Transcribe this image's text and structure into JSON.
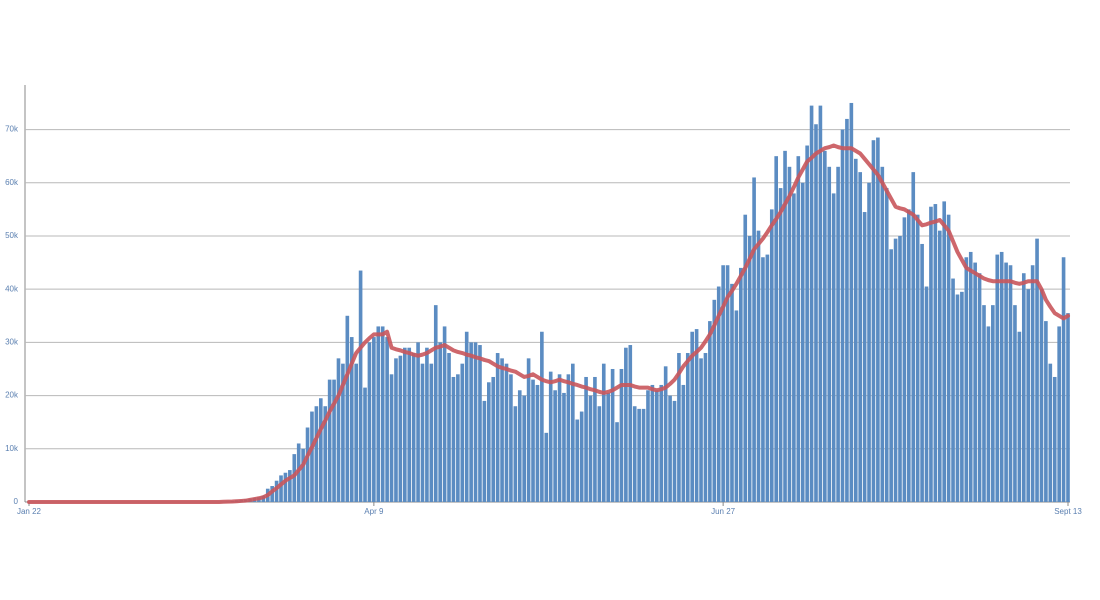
{
  "chart_data": {
    "type": "bar",
    "categories": [
      "Jan 22",
      null,
      null,
      null,
      null,
      null,
      null,
      null,
      null,
      null,
      null,
      null,
      null,
      null,
      null,
      null,
      null,
      null,
      null,
      null,
      null,
      null,
      null,
      null,
      null,
      null,
      null,
      null,
      null,
      null,
      null,
      null,
      null,
      null,
      null,
      null,
      null,
      null,
      null,
      null,
      null,
      null,
      null,
      null,
      null,
      null,
      null,
      null,
      null,
      null,
      null,
      null,
      null,
      null,
      null,
      null,
      null,
      null,
      null,
      null,
      null,
      null,
      null,
      null,
      null,
      null,
      null,
      null,
      null,
      null,
      null,
      null,
      null,
      null,
      null,
      null,
      null,
      null,
      "Apr 9",
      null,
      null,
      null,
      null,
      null,
      null,
      null,
      null,
      null,
      null,
      null,
      null,
      null,
      null,
      null,
      null,
      null,
      null,
      null,
      null,
      null,
      null,
      null,
      null,
      null,
      null,
      null,
      null,
      null,
      null,
      null,
      null,
      null,
      null,
      null,
      null,
      null,
      null,
      null,
      null,
      null,
      null,
      null,
      null,
      null,
      null,
      null,
      null,
      null,
      null,
      null,
      null,
      null,
      null,
      null,
      null,
      null,
      null,
      null,
      null,
      null,
      null,
      null,
      null,
      null,
      null,
      null,
      null,
      null,
      null,
      null,
      null,
      null,
      null,
      null,
      null,
      null,
      null,
      "Jun 27",
      null,
      null,
      null,
      null,
      null,
      null,
      null,
      null,
      null,
      null,
      null,
      null,
      null,
      null,
      null,
      null,
      null,
      null,
      null,
      null,
      null,
      null,
      null,
      null,
      null,
      null,
      null,
      null,
      null,
      null,
      null,
      null,
      null,
      null,
      null,
      null,
      null,
      null,
      null,
      null,
      null,
      null,
      null,
      null,
      null,
      null,
      null,
      null,
      null,
      null,
      null,
      null,
      null,
      null,
      null,
      null,
      null,
      null,
      null,
      null,
      null,
      null,
      null,
      null,
      null,
      null,
      null,
      null,
      null,
      null,
      null,
      null,
      null,
      null,
      null,
      null,
      null,
      "Sept 13"
    ],
    "series": [
      {
        "type": "bar",
        "color": "#5b8cc2",
        "values": [
          0,
          0,
          0,
          0,
          0,
          0,
          0,
          0,
          0,
          0,
          0,
          0,
          0,
          0,
          0,
          0,
          0,
          0,
          0,
          0,
          0,
          0,
          0,
          0,
          0,
          0,
          0,
          0,
          0,
          0,
          0,
          0,
          0,
          0,
          0,
          0,
          0,
          0,
          0,
          0,
          20,
          30,
          60,
          70,
          100,
          120,
          180,
          300,
          400,
          500,
          600,
          800,
          900,
          1200,
          2500,
          3000,
          4000,
          5000,
          5500,
          6000,
          9000,
          11000,
          10000,
          14000,
          17000,
          18000,
          19500,
          18000,
          23000,
          23000,
          27000,
          26000,
          35000,
          31000,
          26000,
          43500,
          21500,
          30000,
          31000,
          33000,
          33000,
          31000,
          24000,
          27000,
          27500,
          29000,
          29000,
          28000,
          30000,
          26000,
          29000,
          26000,
          37000,
          30000,
          33000,
          28000,
          23500,
          24000,
          26000,
          32000,
          30000,
          30000,
          29500,
          19000,
          22500,
          23500,
          28000,
          27000,
          26000,
          24000,
          18000,
          21000,
          20000,
          27000,
          23000,
          22000,
          32000,
          13000,
          24500,
          21000,
          24000,
          20500,
          24000,
          26000,
          15500,
          17000,
          23500,
          20000,
          23500,
          18000,
          26000,
          20500,
          25000,
          15000,
          25000,
          29000,
          29500,
          18000,
          17500,
          17500,
          21000,
          22000,
          21000,
          22000,
          25500,
          20000,
          19000,
          28000,
          22000,
          28000,
          32000,
          32500,
          27000,
          28000,
          34000,
          38000,
          40500,
          44500,
          44500,
          41000,
          36000,
          44000,
          54000,
          50000,
          61000,
          51000,
          46000,
          46500,
          55000,
          65000,
          59000,
          66000,
          63000,
          58000,
          65000,
          60000,
          67000,
          74500,
          71000,
          74500,
          66000,
          63000,
          58000,
          63000,
          70000,
          72000,
          75000,
          64500,
          62000,
          54500,
          60000,
          68000,
          68500,
          63000,
          59000,
          47500,
          49500,
          50000,
          53500,
          55000,
          62000,
          54000,
          48500,
          40500,
          55500,
          56000,
          51000,
          56500,
          54000,
          42000,
          39000,
          39500,
          46000,
          47000,
          45000,
          43000,
          37000,
          33000,
          37000,
          46500,
          47000,
          45000,
          44500,
          37000,
          32000,
          43000,
          40000,
          44500,
          49500,
          40000,
          34000,
          26000,
          23500,
          33000,
          46000,
          35500
        ]
      },
      {
        "type": "line",
        "color": "#c9565c",
        "values": [
          0,
          0,
          0,
          0,
          0,
          0,
          0,
          0,
          0,
          0,
          0,
          0,
          0,
          0,
          0,
          0,
          0,
          0,
          0,
          0,
          0,
          0,
          0,
          0,
          0,
          0,
          0,
          0,
          0,
          0,
          0,
          0,
          0,
          0,
          0,
          0,
          0,
          0,
          0,
          0,
          0,
          0,
          0,
          0,
          50,
          70,
          100,
          150,
          200,
          250,
          400,
          550,
          700,
          900,
          1300,
          2000,
          2600,
          3300,
          4000,
          4500,
          5000,
          6000,
          7000,
          8700,
          10300,
          12000,
          13700,
          15300,
          17000,
          18500,
          20000,
          22000,
          24000,
          26000,
          28000,
          29000,
          30000,
          30800,
          31500,
          31500,
          31500,
          32000,
          29000,
          28700,
          28500,
          28200,
          28000,
          27700,
          27500,
          27700,
          28000,
          28500,
          29000,
          29200,
          29500,
          29000,
          28500,
          28200,
          28000,
          27700,
          27500,
          27200,
          27000,
          26700,
          26500,
          26000,
          25500,
          25200,
          25000,
          24700,
          24500,
          24000,
          23500,
          23700,
          24000,
          23500,
          23000,
          22700,
          22500,
          22700,
          23000,
          22700,
          22500,
          22200,
          22000,
          21700,
          21500,
          21200,
          21000,
          20700,
          20500,
          20700,
          21000,
          21500,
          22000,
          22000,
          22000,
          21700,
          21500,
          21500,
          21500,
          21200,
          21000,
          21200,
          21500,
          22200,
          23000,
          24200,
          25500,
          26500,
          27500,
          28200,
          29000,
          30200,
          31500,
          33200,
          35000,
          36700,
          38500,
          39700,
          41000,
          42500,
          44000,
          45700,
          47500,
          48500,
          49500,
          50700,
          52000,
          53200,
          54500,
          56000,
          57500,
          59200,
          61000,
          62500,
          64000,
          64700,
          65500,
          66000,
          66500,
          66700,
          67000,
          66700,
          66500,
          66500,
          66500,
          66000,
          65500,
          64500,
          63500,
          62500,
          61500,
          60000,
          58500,
          57000,
          55500,
          55200,
          55000,
          54500,
          54000,
          53000,
          52000,
          52200,
          52500,
          52700,
          53000,
          52000,
          51000,
          49000,
          47000,
          45500,
          44000,
          43500,
          43000,
          42500,
          42000,
          41700,
          41500,
          41500,
          41500,
          41500,
          41500,
          41200,
          41000,
          41200,
          41500,
          41500,
          41500,
          40000,
          38000,
          36700,
          35500,
          35000,
          34500,
          35000
        ]
      }
    ],
    "ylim": [
      0,
      78000
    ],
    "yticks": [
      0,
      {
        "value": 10000,
        "label": "10k"
      },
      {
        "value": 20000,
        "label": "20k"
      },
      {
        "value": 30000,
        "label": "30k"
      },
      {
        "value": 40000,
        "label": "40k"
      },
      {
        "value": 50000,
        "label": "50k"
      },
      {
        "value": 60000,
        "label": "60k"
      },
      {
        "value": 70000,
        "label": "70k"
      }
    ],
    "grid": true
  }
}
